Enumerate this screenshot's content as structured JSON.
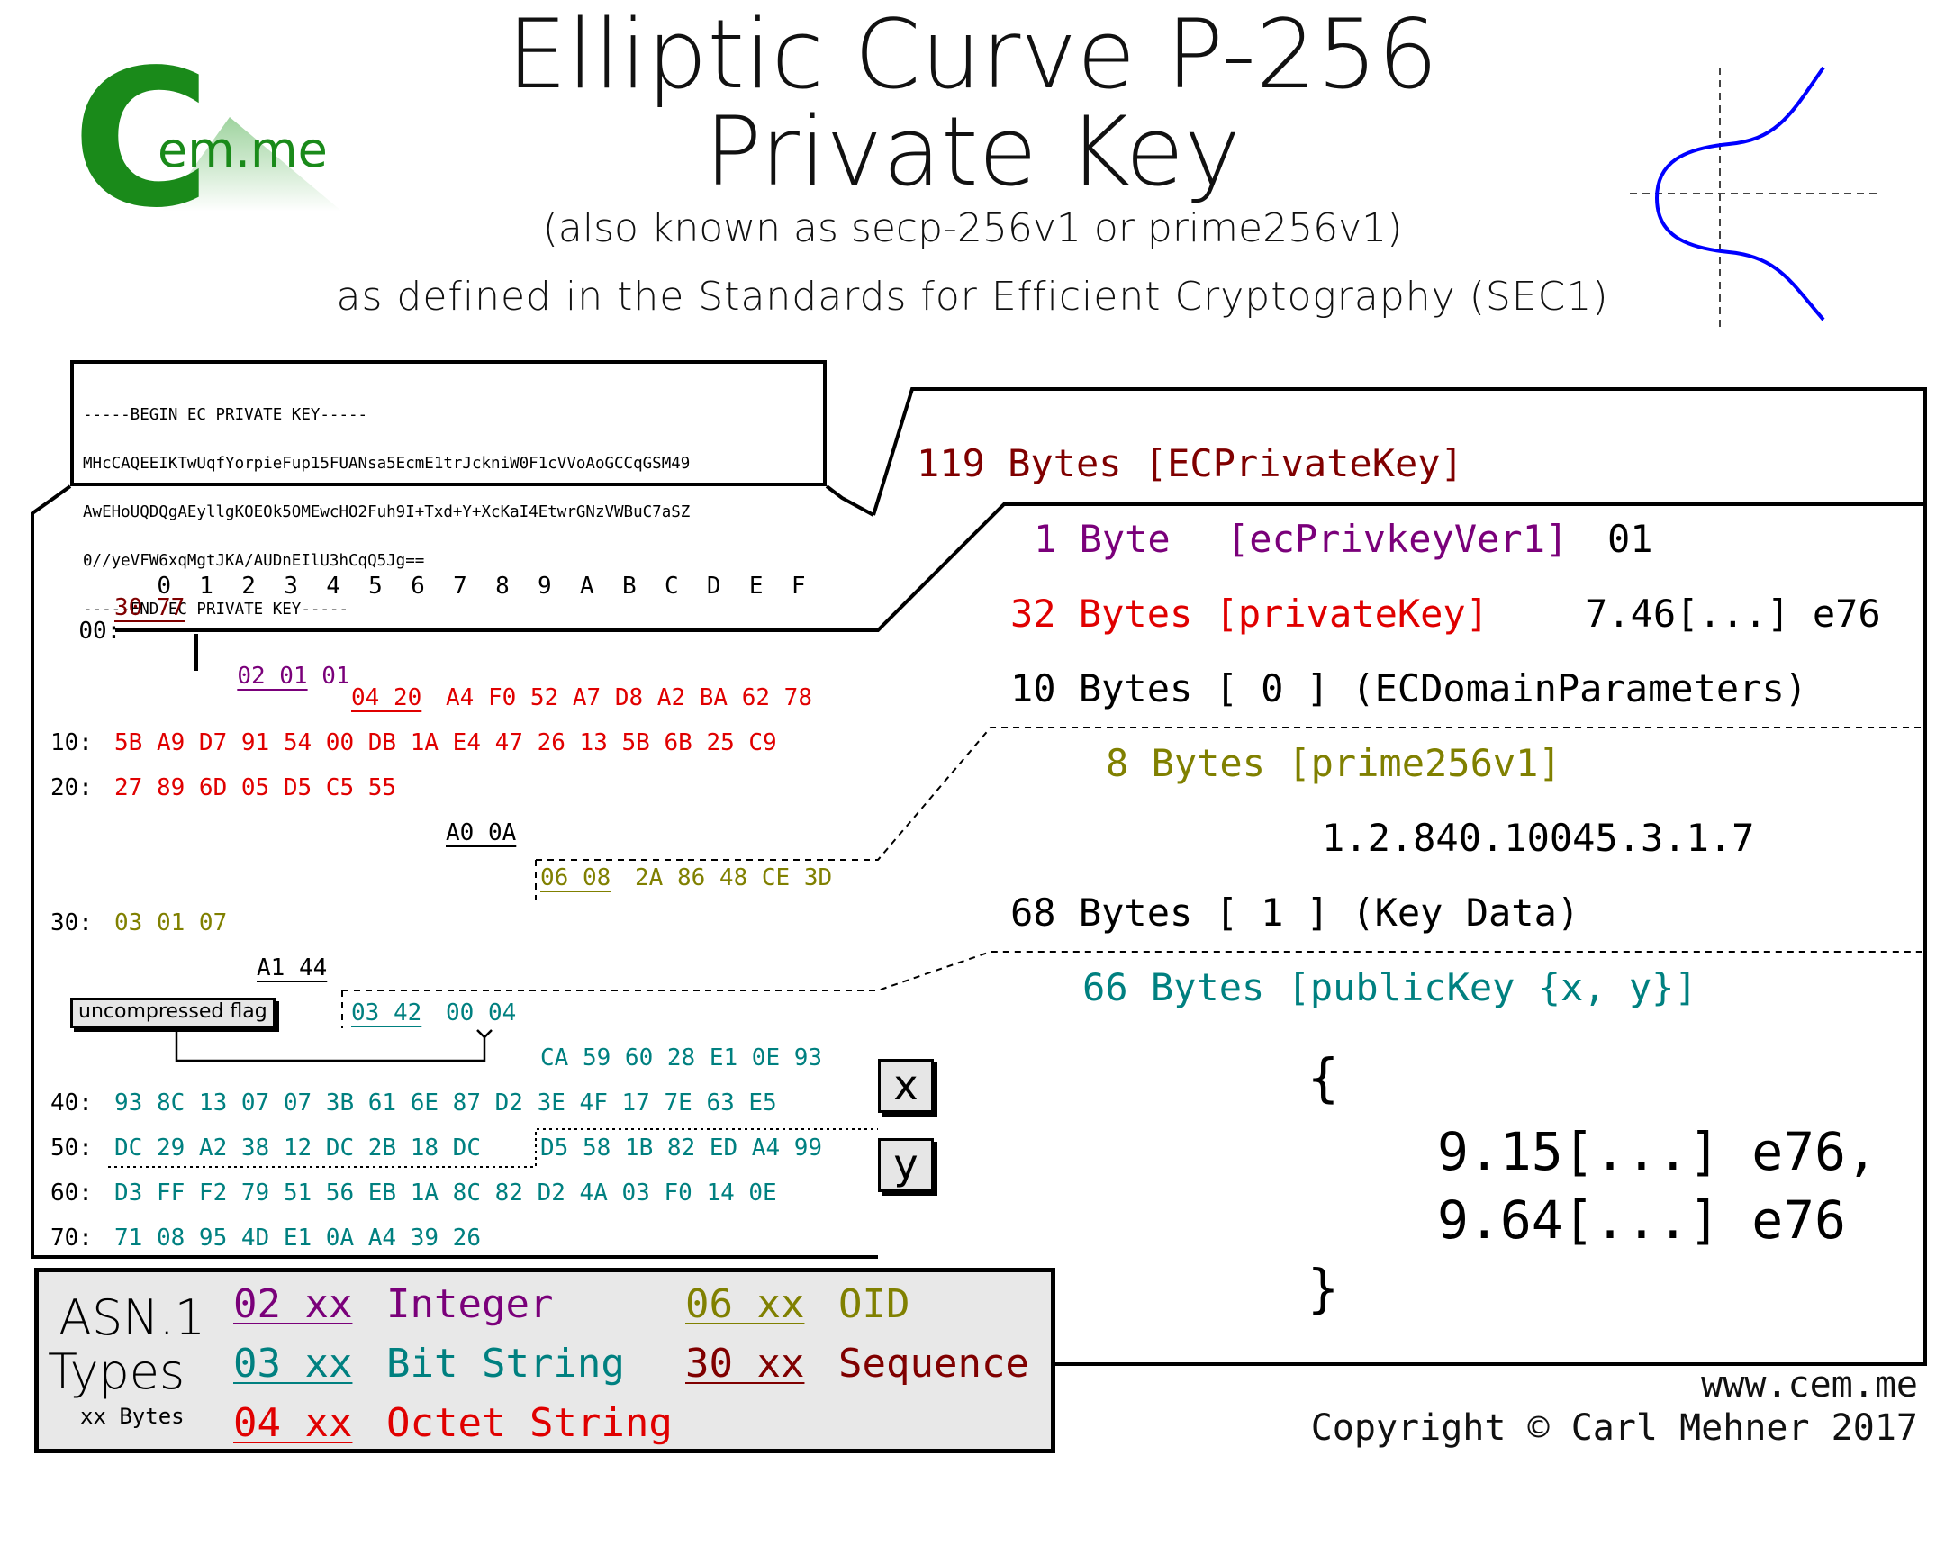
{
  "header": {
    "title_line1": "Elliptic Curve P-256",
    "title_line2": "Private Key",
    "aka": "(also known as secp-256v1 or prime256v1)",
    "defined": "as defined in the Standards for Efficient Cryptography (SEC1)"
  },
  "logo": {
    "main": "C",
    "sub": "em.me",
    "color": "#1a8a1a"
  },
  "pem": [
    "-----BEGIN EC PRIVATE KEY-----",
    "MHcCAQEEIKTwUqfYorpieFup15FUANsa5EcmE1trJckniW0F1cVVoAoGCCqGSM49",
    "AwEHoUQDQgAEyllgKOEOk5OMEwcHO2Fuh9I+Txd+Y+XcKaI4EtwrGNzVWBuC7aSZ",
    "0//yeVFW6xqMgtJKA/AUDnEIlU3hCqQ5Jg==",
    "-----END EC PRIVATE KEY-----"
  ],
  "hexdump": {
    "columns": [
      "0",
      "1",
      "2",
      "3",
      "4",
      "5",
      "6",
      "7",
      "8",
      "9",
      "A",
      "B",
      "C",
      "D",
      "E",
      "F"
    ],
    "r00_label": "00:",
    "r00_seq": "30 77",
    "r00b_ver": "02 01 01",
    "r00c_tag": "04 20",
    "r00c_data": "A4 F0 52 A7 D8 A2 BA 62 78",
    "r10_label": "10:",
    "r10_data": "5B A9 D7 91 54 00 DB 1A E4 47 26 13 5B 6B 25 C9",
    "r20_label": "20:",
    "r20_data": "27 89 6D 05 D5 C5 55",
    "r20b_a0": "A0 0A",
    "r20c_oidtag": "06 08",
    "r20c_oid": "2A 86 48 CE 3D",
    "r30_label": "30:",
    "r30_data": "03 01 07",
    "r30b_a1": "A1 44",
    "r30c_bittag": "03 42",
    "r30c_rest": "00 04",
    "r30d_x": "CA 59 60 28 E1 0E 93",
    "r40_label": "40:",
    "r40_data": "93 8C 13 07 07 3B 61 6E 87 D2 3E 4F 17 7E 63 E5",
    "r50_label": "50:",
    "r50_x": "DC 29 A2 38 12 DC 2B 18 DC",
    "r50_y": "D5 58 1B 82 ED A4 99",
    "r60_label": "60:",
    "r60_data": "D3 FF F2 79 51 56 EB 1A 8C 82 D2 4A 03 F0 14 0E",
    "r70_label": "70:",
    "r70_data": "71 08 95 4D E1 0A A4 39 26",
    "flag": "uncompressed flag",
    "x_label": "x",
    "y_label": "y"
  },
  "structure": {
    "total": "119 Bytes [ECPrivateKey]",
    "ver_bytes": "1 Byte",
    "ver_name": "[ecPrivkeyVer1]",
    "ver_value": "01",
    "pk_label": "32 Bytes [privateKey]",
    "pk_value": "7.46[...] e76",
    "params": "10 Bytes [ 0 ] (ECDomainParameters)",
    "oid_label": "8 Bytes [prime256v1]",
    "oid_value": "1.2.840.10045.3.1.7",
    "keydata": "68 Bytes [ 1 ] (Key Data)",
    "pub_label": "66 Bytes [publicKey {x, y}]",
    "brace_open": "{",
    "pub_x": "9.15[...] e76,",
    "pub_y": "9.64[...] e76",
    "brace_close": "}"
  },
  "legend": {
    "title1": "ASN.1",
    "title2": "Types",
    "xx_note": "xx Bytes",
    "items": [
      {
        "code": "02 xx",
        "name": "Integer",
        "color": "#7a007a"
      },
      {
        "code": "03 xx",
        "name": "Bit String",
        "color": "#008080"
      },
      {
        "code": "04 xx",
        "name": "Octet String",
        "color": "#e00000"
      },
      {
        "code": "06 xx",
        "name": "OID",
        "color": "#808000"
      },
      {
        "code": "30 xx",
        "name": "Sequence",
        "color": "#800000"
      }
    ]
  },
  "footer": {
    "url": "www.cem.me",
    "copyright": "Copyright © Carl Mehner 2017"
  }
}
